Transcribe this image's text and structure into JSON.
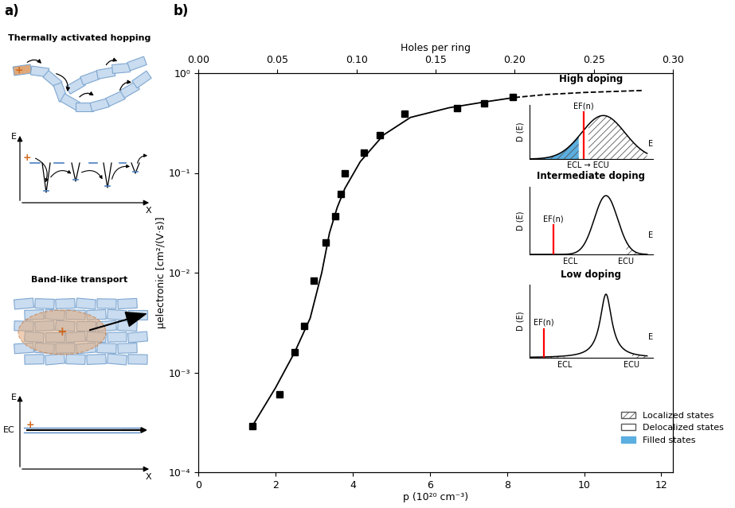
{
  "panel_labels": [
    "a)",
    "b)"
  ],
  "diagram": {
    "hopping": {
      "title": "Thermally activated hopping",
      "charge": "+",
      "axis_labels": [
        "E",
        "X"
      ]
    },
    "band": {
      "title": "Band-like transport",
      "charge": "+",
      "axis_labels": [
        "E",
        "X"
      ],
      "level": "EC"
    }
  },
  "chart_data": {
    "type": "scatter",
    "xlabel": "p (10²⁰ cm⁻³)",
    "ylabel": "μelectronic [cm²/(V·s)]",
    "x2label": "Holes per ring",
    "log": "y",
    "xlim": [
      0,
      12.3
    ],
    "xticks": [
      0,
      2,
      4,
      6,
      8,
      10,
      12
    ],
    "x2lim": [
      0,
      0.3
    ],
    "x2ticks": [
      {
        "value": 0,
        "label": "0.00"
      },
      {
        "value": 0.05,
        "label": "0.05"
      },
      {
        "value": 0.1,
        "label": "0.10"
      },
      {
        "value": 0.15,
        "label": "0.15"
      },
      {
        "value": 0.2,
        "label": "0.20"
      },
      {
        "value": 0.25,
        "label": "0.25"
      },
      {
        "value": 0.3,
        "label": "0.30"
      }
    ],
    "ylim": [
      0.0001,
      1
    ],
    "yticks": [
      {
        "value": 0.0001,
        "label": "10⁻⁴"
      },
      {
        "value": 0.001,
        "label": "10⁻³"
      },
      {
        "value": 0.01,
        "label": "10⁻²"
      },
      {
        "value": 0.1,
        "label": "10⁻¹"
      },
      {
        "value": 1,
        "label": "10⁰"
      }
    ],
    "series": [
      {
        "type": "scatter",
        "marker": "square",
        "color": "#000000",
        "x": [
          1.4,
          2.1,
          2.5,
          2.75,
          3.0,
          3.3,
          3.55,
          3.7,
          3.8,
          4.3,
          4.7,
          5.35,
          6.7,
          7.4,
          8.15
        ],
        "values": [
          0.00029,
          0.0006,
          0.0016,
          0.0029,
          0.0083,
          0.02,
          0.037,
          0.062,
          0.1,
          0.16,
          0.24,
          0.39,
          0.45,
          0.5,
          0.58
        ]
      },
      {
        "type": "line",
        "line_style": "solid",
        "color": "#000000",
        "x": [
          1.4,
          2.0,
          2.5,
          2.9,
          3.2,
          3.4,
          3.6,
          3.8,
          4.2,
          4.8,
          5.5,
          6.5,
          7.5,
          8.2
        ],
        "values": [
          0.00029,
          0.0007,
          0.0016,
          0.0035,
          0.01,
          0.025,
          0.045,
          0.07,
          0.13,
          0.24,
          0.36,
          0.45,
          0.52,
          0.57
        ]
      },
      {
        "type": "line",
        "line_style": "dashed",
        "color": "#000000",
        "x": [
          8.2,
          9.0,
          10.0,
          11.5
        ],
        "values": [
          0.57,
          0.61,
          0.64,
          0.67
        ]
      }
    ]
  },
  "insets": [
    {
      "title": "High doping",
      "ylabel": "D (E)",
      "xlabel": "E",
      "fermi_label": "EF(n)",
      "edge_labels": [
        "ECL → ECU"
      ]
    },
    {
      "title": "Intermediate doping",
      "ylabel": "D (E)",
      "xlabel": "E",
      "fermi_label": "EF(n)",
      "edge_labels": [
        "ECL",
        "ECU"
      ]
    },
    {
      "title": "Low doping",
      "ylabel": "D (E)",
      "xlabel": "E",
      "fermi_label": "EF(n)",
      "edge_labels": [
        "ECL",
        "ECU"
      ]
    }
  ],
  "inset_legend": {
    "legend": "lower right",
    "entries": [
      "Localized states",
      "Delocalized states",
      "Filled states"
    ]
  }
}
